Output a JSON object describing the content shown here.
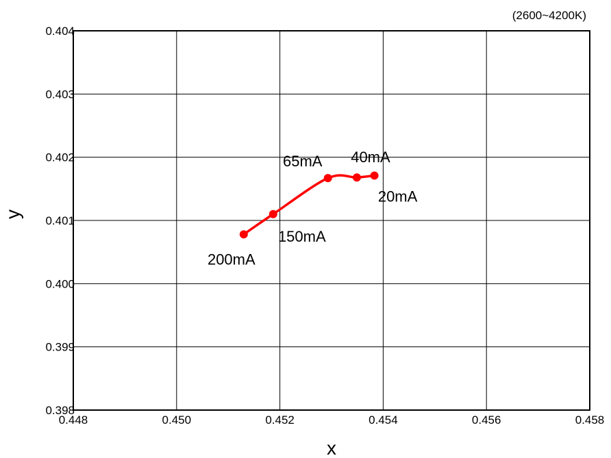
{
  "chart_data": {
    "type": "line",
    "title": "",
    "annotation": "(2600~4200K)",
    "xlabel": "x",
    "ylabel": "y",
    "xlim": [
      0.448,
      0.458
    ],
    "ylim": [
      0.398,
      0.404
    ],
    "x_ticks": [
      0.448,
      0.45,
      0.452,
      0.454,
      0.456,
      0.458
    ],
    "y_ticks": [
      0.398,
      0.399,
      0.4,
      0.401,
      0.402,
      0.403,
      0.404
    ],
    "x_tick_labels": [
      "0.448",
      "0.450",
      "0.452",
      "0.454",
      "0.456",
      "0.458"
    ],
    "y_tick_labels": [
      "0.398",
      "0.399",
      "0.400",
      "0.401",
      "0.402",
      "0.403",
      "0.404"
    ],
    "grid": true,
    "legend": "none",
    "series": [
      {
        "color": "#ff0000",
        "points": [
          {
            "x": 0.4513,
            "y": 0.40078,
            "label": "200mA"
          },
          {
            "x": 0.45187,
            "y": 0.4011,
            "label": "150mA"
          },
          {
            "x": 0.45293,
            "y": 0.40167,
            "label": "65mA"
          },
          {
            "x": 0.45349,
            "y": 0.40168,
            "label": "40mA"
          },
          {
            "x": 0.45383,
            "y": 0.40171,
            "label": "20mA"
          }
        ]
      }
    ]
  }
}
